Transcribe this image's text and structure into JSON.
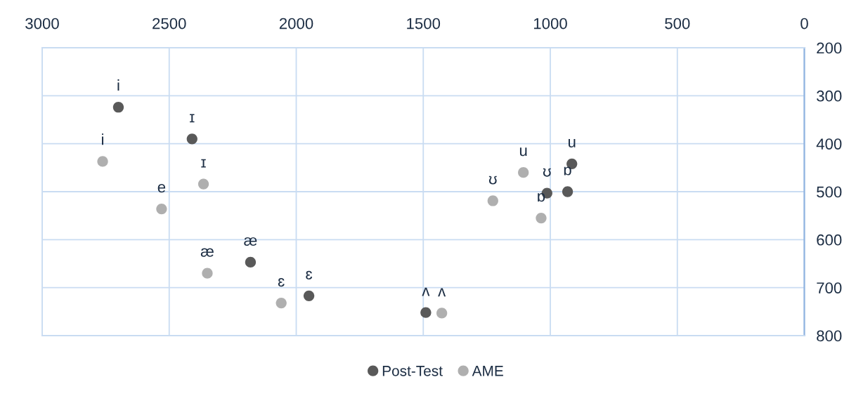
{
  "chart_data": {
    "type": "scatter",
    "series": [
      {
        "name": "Post-Test",
        "color": "#595959",
        "x": [
          2700,
          2410,
          2180,
          1950,
          1490,
          1013,
          915,
          932
        ],
        "values": [
          324,
          390,
          647,
          717,
          752,
          503,
          442,
          500
        ],
        "value_labels": [
          "i",
          "ɪ",
          "æ",
          "ɛ",
          "ʌ",
          "ʊ",
          "u",
          "ɒ"
        ]
      },
      {
        "name": "AME",
        "color": "#afafaf",
        "x": [
          2762,
          2365,
          2530,
          2350,
          2059,
          1427,
          1226,
          1106,
          1036
        ],
        "values": [
          437,
          484,
          536,
          670,
          732,
          753,
          519,
          460,
          555
        ],
        "value_labels": [
          "i",
          "ɪ",
          "e",
          "æ",
          "ɛ",
          "ʌ",
          "ʊ",
          "u",
          "ɒ"
        ]
      }
    ],
    "xlim": [
      3000,
      0
    ],
    "xticks": [
      3000,
      2500,
      2000,
      1500,
      1000,
      500,
      0
    ],
    "ylim": [
      800,
      200
    ],
    "yticks": [
      200,
      300,
      400,
      500,
      600,
      700,
      800
    ],
    "grid": true,
    "legend": "bottom",
    "marker": "circle"
  }
}
